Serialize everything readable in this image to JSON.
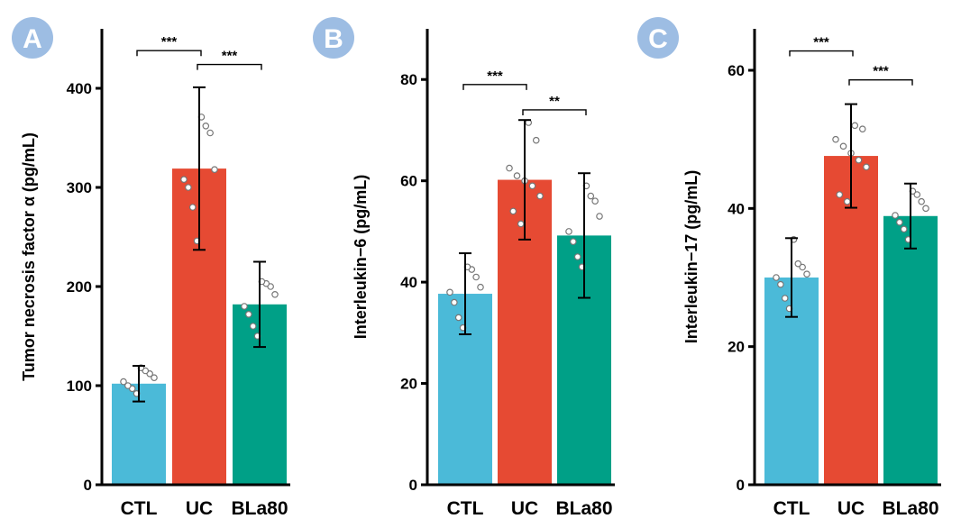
{
  "colors": {
    "CTL": "#4bbad8",
    "UC": "#e64a33",
    "BLa80": "#00a087",
    "panel_badge": "#9dbde3"
  },
  "chart_data": [
    {
      "panel": "A",
      "type": "bar",
      "ylabel": "Tumor necrosis factor α (pg/mL)",
      "categories": [
        "CTL",
        "UC",
        "BLa80"
      ],
      "values": [
        102,
        319,
        182
      ],
      "error": [
        18,
        82,
        43
      ],
      "ylim": [
        0,
        460
      ],
      "yticks": [
        0,
        100,
        200,
        300,
        400
      ],
      "points": [
        [
          92,
          97,
          100,
          104,
          108,
          112,
          115,
          118
        ],
        [
          246,
          280,
          300,
          308,
          318,
          355,
          362,
          371
        ],
        [
          150,
          160,
          172,
          180,
          192,
          200,
          203,
          205
        ]
      ],
      "significance": [
        {
          "from": 0,
          "to": 1,
          "label": "***",
          "y": 438
        },
        {
          "from": 1,
          "to": 2,
          "label": "***",
          "y": 424
        }
      ]
    },
    {
      "panel": "B",
      "type": "bar",
      "ylabel": "Interleukin−6 (pg/mL)",
      "categories": [
        "CTL",
        "UC",
        "BLa80"
      ],
      "values": [
        37.7,
        60.2,
        49.2
      ],
      "error": [
        8.0,
        11.8,
        12.3
      ],
      "ylim": [
        0,
        90
      ],
      "yticks": [
        0,
        20,
        40,
        60,
        80
      ],
      "points": [
        [
          31,
          33,
          36,
          38,
          39,
          41,
          42.5,
          43
        ],
        [
          51.5,
          54,
          57,
          59,
          60,
          61,
          62.5,
          68,
          71.5
        ],
        [
          43,
          45,
          48,
          50,
          53,
          56,
          57,
          59
        ]
      ],
      "significance": [
        {
          "from": 0,
          "to": 1,
          "label": "***",
          "y": 79
        },
        {
          "from": 1,
          "to": 2,
          "label": "**",
          "y": 74
        }
      ]
    },
    {
      "panel": "C",
      "type": "bar",
      "ylabel": "Interleukin−17 (pg/mL)",
      "categories": [
        "CTL",
        "UC",
        "BLa80"
      ],
      "values": [
        30.0,
        47.6,
        38.9
      ],
      "error": [
        5.7,
        7.5,
        4.7
      ],
      "ylim": [
        0,
        66
      ],
      "yticks": [
        0,
        20,
        40,
        60
      ],
      "points": [
        [
          25.5,
          27,
          29,
          30,
          30.5,
          31.5,
          32,
          35.5
        ],
        [
          41,
          42,
          46,
          47,
          48,
          49,
          50,
          51.5,
          52
        ],
        [
          35.5,
          37,
          38,
          39,
          40,
          41,
          42,
          42.5
        ]
      ],
      "significance": [
        {
          "from": 0,
          "to": 1,
          "label": "***",
          "y": 62.8
        },
        {
          "from": 1,
          "to": 2,
          "label": "***",
          "y": 58.6
        }
      ]
    }
  ]
}
